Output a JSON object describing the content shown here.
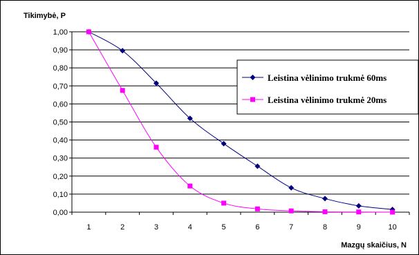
{
  "chart_data": {
    "type": "line",
    "title": "",
    "ylabel": "Tikimybė, P",
    "xlabel": "Mazgų skaičius, N",
    "x": [
      1,
      2,
      3,
      4,
      5,
      6,
      7,
      8,
      9,
      10
    ],
    "ylim": [
      0,
      1
    ],
    "yticks": [
      "0,00",
      "0,10",
      "0,20",
      "0,30",
      "0,40",
      "0,50",
      "0,60",
      "0,70",
      "0,80",
      "0,90",
      "1,00"
    ],
    "xticks": [
      "1",
      "2",
      "3",
      "4",
      "5",
      "6",
      "7",
      "8",
      "9",
      "10"
    ],
    "grid": "horizontal",
    "legend_position": "right",
    "series": [
      {
        "name": "Leistina vėlinimo trukmė 60ms",
        "values": [
          1.0,
          0.895,
          0.715,
          0.52,
          0.38,
          0.255,
          0.135,
          0.075,
          0.035,
          0.015
        ],
        "color": "#00007f",
        "marker": "diamond"
      },
      {
        "name": "Leistina vėlinimo trukmė 20ms",
        "values": [
          1.0,
          0.675,
          0.36,
          0.145,
          0.05,
          0.018,
          0.007,
          0.002,
          0.001,
          0.0
        ],
        "color": "#ff00ff",
        "marker": "square"
      }
    ]
  }
}
